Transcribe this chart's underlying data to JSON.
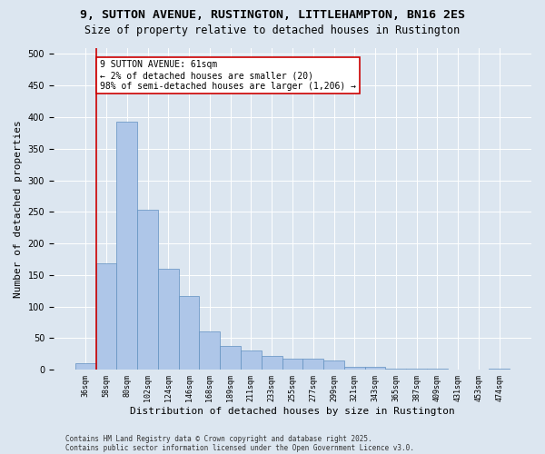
{
  "title_line1": "9, SUTTON AVENUE, RUSTINGTON, LITTLEHAMPTON, BN16 2ES",
  "title_line2": "Size of property relative to detached houses in Rustington",
  "xlabel": "Distribution of detached houses by size in Rustington",
  "ylabel": "Number of detached properties",
  "bar_labels": [
    "36sqm",
    "58sqm",
    "80sqm",
    "102sqm",
    "124sqm",
    "146sqm",
    "168sqm",
    "189sqm",
    "211sqm",
    "233sqm",
    "255sqm",
    "277sqm",
    "299sqm",
    "321sqm",
    "343sqm",
    "365sqm",
    "387sqm",
    "409sqm",
    "431sqm",
    "453sqm",
    "474sqm"
  ],
  "bar_values": [
    10,
    168,
    393,
    253,
    160,
    116,
    60,
    37,
    30,
    22,
    18,
    17,
    14,
    5,
    4,
    1,
    1,
    1,
    0,
    0,
    1
  ],
  "bar_color": "#aec6e8",
  "bar_edge_color": "#6090c0",
  "vline_color": "#cc0000",
  "vline_x": 0.5,
  "annotation_text": "9 SUTTON AVENUE: 61sqm\n← 2% of detached houses are smaller (20)\n98% of semi-detached houses are larger (1,206) →",
  "annotation_box_color": "#ffffff",
  "annotation_box_edge_color": "#cc0000",
  "ylim": [
    0,
    510
  ],
  "yticks": [
    0,
    50,
    100,
    150,
    200,
    250,
    300,
    350,
    400,
    450,
    500
  ],
  "background_color": "#dce6f0",
  "plot_bg_color": "#dce6f0",
  "footer_line1": "Contains HM Land Registry data © Crown copyright and database right 2025.",
  "footer_line2": "Contains public sector information licensed under the Open Government Licence v3.0.",
  "title_fontsize": 9.5,
  "subtitle_fontsize": 8.5,
  "tick_fontsize": 6,
  "ylabel_fontsize": 8,
  "xlabel_fontsize": 8,
  "annotation_fontsize": 7,
  "footer_fontsize": 5.5
}
